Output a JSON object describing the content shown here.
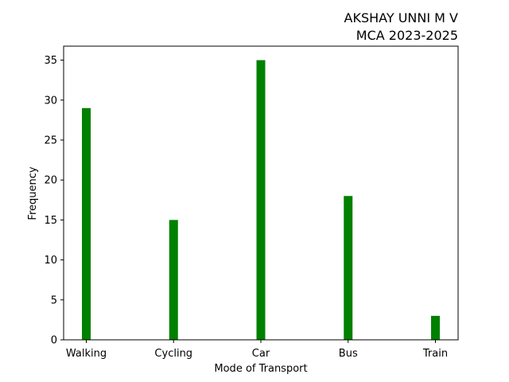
{
  "chart_data": {
    "type": "bar",
    "title_lines": [
      "AKSHAY UNNI M V",
      "MCA 2023-2025"
    ],
    "title_align": "right",
    "xlabel": "Mode of Transport",
    "ylabel": "Frequency",
    "categories": [
      "Walking",
      "Cycling",
      "Car",
      "Bus",
      "Train"
    ],
    "values": [
      29,
      15,
      35,
      18,
      3
    ],
    "ylim": [
      0,
      36.75
    ],
    "yticks": [
      0,
      5,
      10,
      15,
      20,
      25,
      30,
      35
    ],
    "bar_color": "#008000",
    "grid": false,
    "legend": "none"
  }
}
